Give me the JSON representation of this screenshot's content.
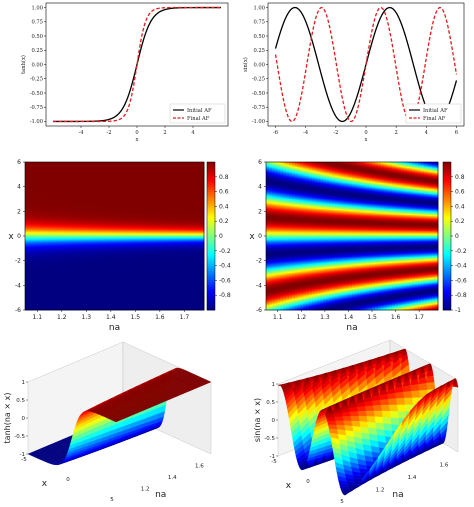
{
  "chart_data": [
    {
      "type": "line",
      "title": "",
      "xlabel": "x",
      "ylabel": "tanh(x)",
      "xlim": [
        -6,
        6
      ],
      "ylim": [
        -1.0,
        1.0
      ],
      "x_ticks": [
        "-4",
        "-2",
        "0",
        "2",
        "4"
      ],
      "y_ticks": [
        "-1.00",
        "-0.75",
        "-0.50",
        "-0.25",
        "0.00",
        "0.25",
        "0.50",
        "0.75",
        "1.00"
      ],
      "legend_position": "lower-right",
      "series": [
        {
          "name": "Initial AF",
          "color": "#000000",
          "style": "solid",
          "formula": "tanh(x)"
        },
        {
          "name": "Final AF",
          "color": "#e41a1c",
          "style": "dashed",
          "formula": "tanh(1.6x)"
        }
      ]
    },
    {
      "type": "line",
      "title": "",
      "xlabel": "x",
      "ylabel": "sin(x)",
      "xlim": [
        -6,
        6
      ],
      "ylim": [
        -1.0,
        1.0
      ],
      "x_ticks": [
        "-6",
        "-4",
        "-2",
        "0",
        "2",
        "4",
        "6"
      ],
      "y_ticks": [
        "-1.00",
        "-0.75",
        "-0.50",
        "-0.25",
        "0.00",
        "0.25",
        "0.50",
        "0.75",
        "1.00"
      ],
      "legend_position": "lower-right",
      "series": [
        {
          "name": "Initial AF",
          "color": "#000000",
          "style": "solid",
          "formula": "sin(x)"
        },
        {
          "name": "Final AF",
          "color": "#e41a1c",
          "style": "dashed",
          "formula": "sin(1.6x)"
        }
      ]
    },
    {
      "type": "heatmap",
      "xlabel": "na",
      "ylabel": "x",
      "xlim": [
        1.05,
        1.78
      ],
      "ylim": [
        -6,
        6
      ],
      "formula": "tanh(na * x)",
      "x_ticks": [
        "1.1",
        "1.2",
        "1.3",
        "1.4",
        "1.5",
        "1.6",
        "1.7"
      ],
      "y_ticks": [
        "-6",
        "-4",
        "-2",
        "0",
        "2",
        "4",
        "6"
      ],
      "colorbar_ticks": [
        "0.8",
        "0.6",
        "0.4",
        "0.2",
        "0",
        "-0.2",
        "-0.4",
        "-0.6",
        "-0.8"
      ],
      "colormap": "jet"
    },
    {
      "type": "heatmap",
      "xlabel": "na",
      "ylabel": "x",
      "xlim": [
        1.05,
        1.78
      ],
      "ylim": [
        -6,
        6
      ],
      "formula": "sin(na * x)",
      "x_ticks": [
        "1.1",
        "1.2",
        "1.3",
        "1.4",
        "1.5",
        "1.6",
        "1.7"
      ],
      "y_ticks": [
        "-6",
        "-4",
        "-2",
        "0",
        "2",
        "4",
        "6"
      ],
      "colorbar_ticks": [
        "0.8",
        "0.6",
        "0.4",
        "0.2",
        "0",
        "-0.2",
        "-0.4",
        "-0.6",
        "-0.8",
        "-1"
      ],
      "colormap": "jet"
    },
    {
      "type": "surface",
      "xlabel": "x",
      "ylabel": "na",
      "zlabel": "tanh(na × x)",
      "formula": "tanh(na * x)",
      "x_ticks": [
        "-5",
        "0",
        "5"
      ],
      "na_ticks": [
        "1.2",
        "1.4",
        "1.6"
      ],
      "z_ticks": [
        "1",
        "0.5",
        "0",
        "-0.5",
        "-1"
      ],
      "colormap": "jet"
    },
    {
      "type": "surface",
      "xlabel": "x",
      "ylabel": "na",
      "zlabel": "sin(na × x)",
      "formula": "sin(na * x)",
      "x_ticks": [
        "-5",
        "0",
        "5"
      ],
      "na_ticks": [
        "1.2",
        "1.4",
        "1.6"
      ],
      "z_ticks": [
        "1",
        "0.5",
        "0",
        "-0.5",
        "-1"
      ],
      "colormap": "jet"
    }
  ]
}
